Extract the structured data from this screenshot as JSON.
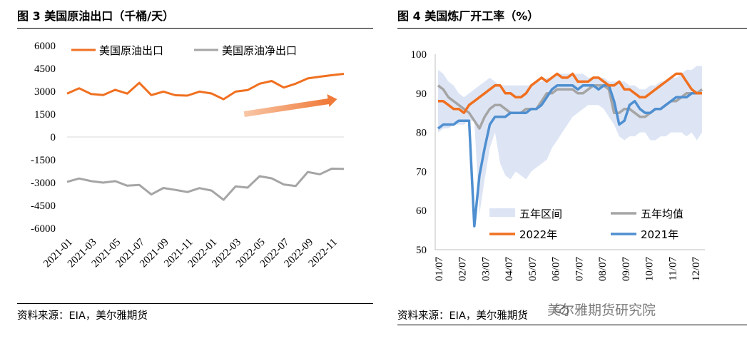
{
  "left": {
    "title": "图 3 美国原油出口（千桶/天）",
    "source": "资料来源：EIA，美尔雅期货",
    "chart_data": {
      "type": "line",
      "categories": [
        "2021-01",
        "2021-02",
        "2021-03",
        "2021-04",
        "2021-05",
        "2021-06",
        "2021-07",
        "2021-08",
        "2021-09",
        "2021-10",
        "2021-11",
        "2021-12",
        "2022-01",
        "2022-02",
        "2022-03",
        "2022-04",
        "2022-05",
        "2022-06",
        "2022-07",
        "2022-08",
        "2022-09",
        "2022-10",
        "2022-11",
        "2022-12"
      ],
      "x_tick_labels": [
        "2021-01",
        "2021-03",
        "2021-05",
        "2021-07",
        "2021-09",
        "2021-11",
        "2022-01",
        "2022-03",
        "2022-05",
        "2022-07",
        "2022-09",
        "2022-11"
      ],
      "ylim": [
        -6000,
        6000
      ],
      "y_ticks": [
        "6000",
        "4500",
        "3000",
        "1500",
        "0",
        "-1500",
        "-3000",
        "-4500",
        "-6000"
      ],
      "legend_position": "top",
      "grid": false,
      "series": [
        {
          "name": "美国原油出口",
          "color": "#F07020",
          "values": [
            2850,
            3200,
            2820,
            2750,
            3100,
            2850,
            3560,
            2750,
            2980,
            2740,
            2720,
            2980,
            2860,
            2480,
            2980,
            3080,
            3500,
            3680,
            3250,
            3500,
            3850,
            3960,
            4060,
            4150
          ]
        },
        {
          "name": "美国原油净出口",
          "color": "#A5A5A5",
          "values": [
            -2950,
            -2730,
            -2900,
            -3000,
            -2900,
            -3200,
            -3150,
            -3780,
            -3350,
            -3480,
            -3620,
            -3360,
            -3520,
            -4130,
            -3250,
            -3330,
            -2580,
            -2720,
            -3120,
            -3220,
            -2300,
            -2450,
            -2080,
            -2100
          ]
        }
      ],
      "annotations": [
        {
          "kind": "arrow",
          "meaning": "upward trend"
        }
      ]
    }
  },
  "right": {
    "title": "图 4   美国炼厂开工率（%）",
    "source": "资料来源：EIA，美尔雅期货",
    "watermark": "美尔雅期货研究院",
    "chart_data": {
      "type": "line",
      "x_tick_labels": [
        "01/07",
        "02/07",
        "03/07",
        "04/07",
        "05/07",
        "06/07",
        "07/07",
        "08/07",
        "09/07",
        "10/07",
        "11/07",
        "12/07"
      ],
      "ylim": [
        50,
        100
      ],
      "y_ticks": [
        "100",
        "90",
        "80",
        "70",
        "60",
        "50"
      ],
      "legend_position": "bottom-right",
      "grid": false,
      "x_weeks": [
        1,
        2,
        3,
        4,
        5,
        6,
        7,
        8,
        9,
        10,
        11,
        12,
        13,
        14,
        15,
        16,
        17,
        18,
        19,
        20,
        21,
        22,
        23,
        24,
        25,
        26,
        27,
        28,
        29,
        30,
        31,
        32,
        33,
        34,
        35,
        36,
        37,
        38,
        39,
        40,
        41,
        42,
        43,
        44,
        45,
        46,
        47,
        48,
        49,
        50,
        51,
        52
      ],
      "series": [
        {
          "name": "五年区间",
          "color": "#DDE5F5",
          "kind": "band",
          "upper": [
            96,
            95,
            93,
            92,
            90,
            89,
            90,
            91,
            92,
            93,
            94,
            93,
            92,
            92,
            92,
            92,
            92,
            92,
            92,
            93,
            93,
            94,
            94,
            95,
            95,
            95,
            95,
            95,
            95,
            94,
            94,
            94,
            94,
            93,
            93,
            93,
            93,
            92,
            92,
            91,
            91,
            92,
            92,
            93,
            93,
            94,
            94,
            95,
            96,
            96,
            97,
            97
          ],
          "lower": [
            80,
            81,
            81,
            82,
            82,
            82,
            83,
            83,
            59,
            68,
            76,
            80,
            72,
            69,
            68,
            70,
            69,
            68,
            70,
            71,
            72,
            73,
            76,
            78,
            80,
            82,
            84,
            85,
            86,
            87,
            87,
            87,
            86,
            84,
            82,
            79,
            78,
            79,
            79,
            80,
            80,
            78,
            78,
            79,
            79,
            80,
            80,
            80,
            79,
            80,
            78,
            80
          ]
        },
        {
          "name": "五年均值",
          "color": "#A5A5A5",
          "values": [
            92,
            91,
            89,
            88,
            87,
            86,
            85,
            83,
            81,
            84,
            86,
            87,
            87,
            86,
            85,
            85,
            85,
            86,
            86,
            86,
            88,
            90,
            90,
            91,
            91,
            91,
            91,
            90,
            90,
            91,
            92,
            92,
            92,
            91,
            85,
            85,
            86,
            86,
            85,
            84,
            84,
            85,
            86,
            86,
            87,
            88,
            88,
            89,
            90,
            90,
            90,
            91
          ]
        },
        {
          "name": "2022年",
          "color": "#F07020",
          "values": [
            88,
            88,
            87,
            86,
            86,
            85,
            87,
            88,
            89,
            90,
            91,
            92,
            92,
            90,
            90,
            89,
            89,
            90,
            92,
            93,
            94,
            93,
            94,
            95,
            94,
            94,
            95,
            93,
            93,
            93,
            94,
            94,
            93,
            92,
            92,
            93,
            91,
            91,
            90,
            89,
            89,
            90,
            91,
            92,
            93,
            94,
            95,
            95,
            93,
            91,
            90,
            90
          ]
        },
        {
          "name": "2021年",
          "color": "#4F8FD0",
          "values": [
            81,
            82,
            82,
            82,
            83,
            83,
            83,
            56,
            69,
            76,
            82,
            84,
            84,
            84,
            85,
            85,
            85,
            85,
            86,
            86,
            87,
            89,
            91,
            92,
            92,
            92,
            92,
            91,
            92,
            92,
            92,
            91,
            92,
            92,
            88,
            82,
            83,
            87,
            88,
            86,
            85,
            85,
            86,
            86,
            87,
            88,
            89,
            89,
            89,
            90,
            90,
            90
          ]
        }
      ]
    }
  }
}
